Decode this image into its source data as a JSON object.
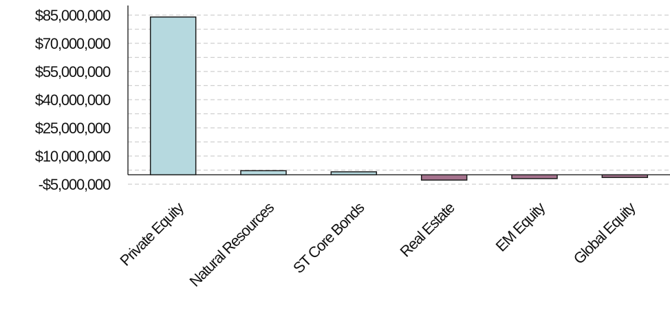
{
  "chart_data": {
    "type": "bar",
    "title": "",
    "xlabel": "",
    "ylabel": "",
    "categories": [
      "Private Equity",
      "Natural Resources",
      "ST Core Bonds",
      "Real Estate",
      "EM Equity",
      "Global Equity"
    ],
    "values": [
      84000000,
      2200000,
      1600000,
      -2800000,
      -2000000,
      -1400000
    ],
    "ylim": [
      -5000000,
      85000000
    ],
    "yticks": [
      85000000,
      70000000,
      55000000,
      40000000,
      25000000,
      10000000,
      -5000000
    ],
    "ytick_labels": [
      "$85,000,000",
      "$70,000,000",
      "$55,000,000",
      "$40,000,000",
      "$25,000,000",
      "$10,000,000",
      "-$5,000,000"
    ],
    "grid": true,
    "legend": "none",
    "colors": {
      "positive": "#b6d9df",
      "negative": "#a5728d",
      "axis": "#222222",
      "grid": "#cfcfcf"
    }
  }
}
